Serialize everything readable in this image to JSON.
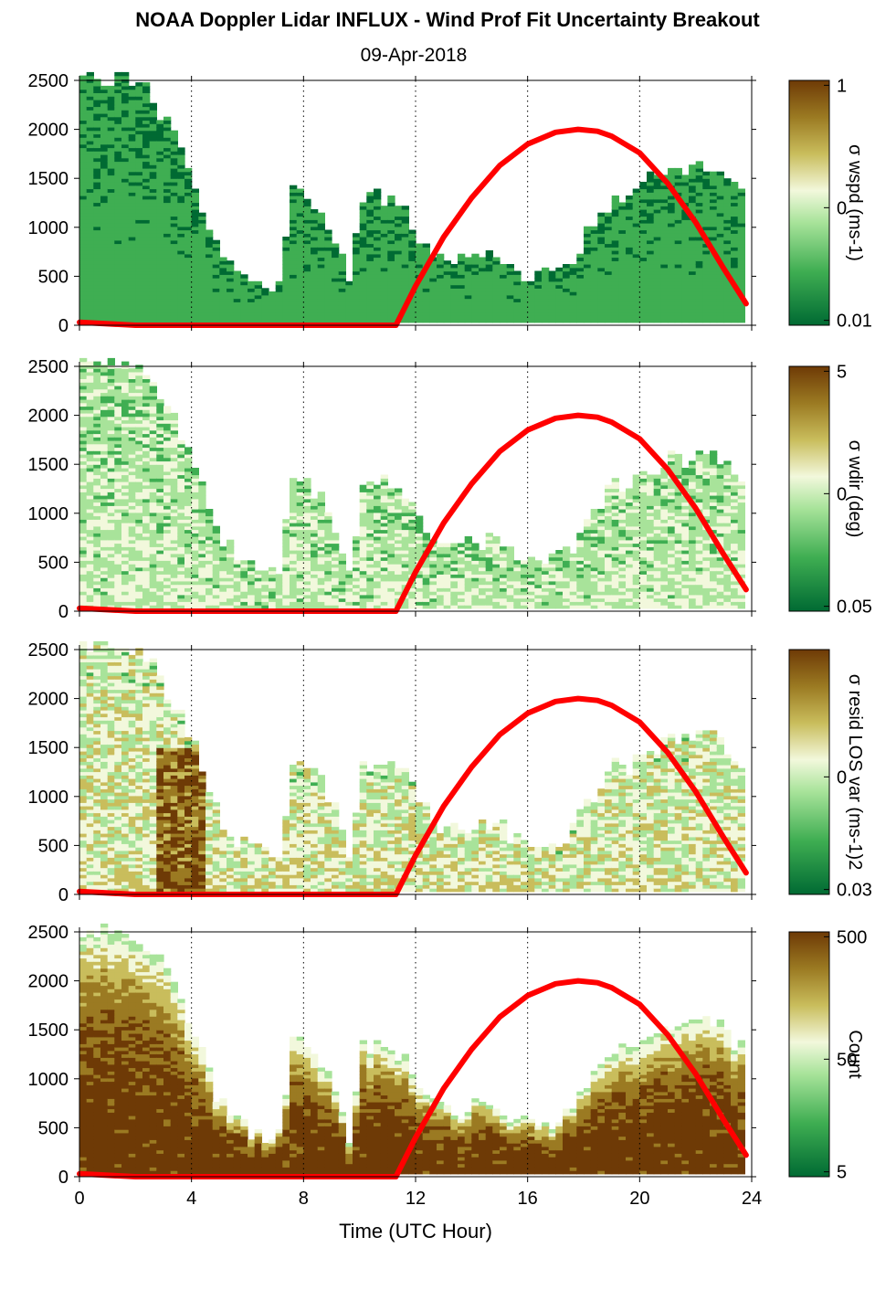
{
  "figure": {
    "title": "NOAA Doppler Lidar INFLUX - Wind Prof Fit Uncertainty Breakout",
    "subtitle": "09-Apr-2018",
    "xlabel": "Time (UTC Hour)"
  },
  "colors": {
    "dark_green": "#006a33",
    "mid_green": "#3fae52",
    "light_green": "#a8e39a",
    "pale": "#f2f8dc",
    "tan": "#c9bd5c",
    "olive": "#9b7a22",
    "dark_brown": "#6e3a06",
    "sun_line": "#ff0000"
  },
  "chart_data": [
    {
      "type": "heatmap",
      "panel": "wspd",
      "x_unit": "UTC hour",
      "y_unit": "m",
      "xlim": [
        0,
        24
      ],
      "ylim": [
        0,
        2500
      ],
      "xticks": [
        0,
        4,
        8,
        12,
        16,
        20,
        24
      ],
      "yticks": [
        0,
        500,
        1000,
        1500,
        2000,
        2500
      ],
      "vertical_gridlines": [
        4,
        8,
        12,
        16,
        20,
        24
      ],
      "colorbar": {
        "label": "σ wspd (ms-1)",
        "ticks": [
          "1",
          "0",
          "0.01"
        ],
        "scale": "log"
      },
      "bias": 0.15
    },
    {
      "type": "heatmap",
      "panel": "wdir",
      "x_unit": "UTC hour",
      "y_unit": "m",
      "xlim": [
        0,
        24
      ],
      "ylim": [
        0,
        2500
      ],
      "xticks": [
        0,
        4,
        8,
        12,
        16,
        20,
        24
      ],
      "yticks": [
        0,
        500,
        1000,
        1500,
        2000,
        2500
      ],
      "vertical_gridlines": [
        4,
        8,
        12,
        16,
        20,
        24
      ],
      "colorbar": {
        "label": "σ wdir (deg)",
        "ticks": [
          "5",
          "0",
          "0.05"
        ],
        "scale": "log"
      },
      "bias": 0.35
    },
    {
      "type": "heatmap",
      "panel": "resid",
      "x_unit": "UTC hour",
      "y_unit": "m",
      "xlim": [
        0,
        24
      ],
      "ylim": [
        0,
        2500
      ],
      "xticks": [
        0,
        4,
        8,
        12,
        16,
        20,
        24
      ],
      "yticks": [
        0,
        500,
        1000,
        1500,
        2000,
        2500
      ],
      "vertical_gridlines": [
        4,
        8,
        12,
        16,
        20,
        24
      ],
      "colorbar": {
        "label": "σ resid LOS var (ms-1)2",
        "ticks": [
          "0",
          "0.03"
        ],
        "scale": "log"
      },
      "bias": 0.45
    },
    {
      "type": "heatmap",
      "panel": "count",
      "x_unit": "UTC hour",
      "y_unit": "m",
      "xlim": [
        0,
        24
      ],
      "ylim": [
        0,
        2500
      ],
      "xticks": [
        0,
        4,
        8,
        12,
        16,
        20,
        24
      ],
      "yticks": [
        0,
        500,
        1000,
        1500,
        2000,
        2500
      ],
      "vertical_gridlines": [
        4,
        8,
        12,
        16,
        20,
        24
      ],
      "colorbar": {
        "label": "Count",
        "ticks": [
          "500",
          "50",
          "5"
        ],
        "scale": "log"
      },
      "bias": 0.9
    }
  ],
  "data_top_height": {
    "hours": [
      0,
      0.5,
      1,
      1.5,
      2,
      2.5,
      3,
      3.5,
      4,
      4.5,
      5,
      5.5,
      6,
      6.5,
      7,
      7.5,
      8,
      8.5,
      9,
      9.5,
      10,
      10.5,
      11,
      11.5,
      12,
      12.5,
      13,
      13.5,
      14,
      14.5,
      15,
      15.5,
      16,
      16.5,
      17,
      17.5,
      18,
      18.5,
      19,
      19.5,
      20,
      20.5,
      21,
      21.5,
      22,
      22.5,
      23,
      23.5
    ],
    "meters": [
      2500,
      2500,
      2500,
      2500,
      2450,
      2300,
      2050,
      1800,
      1450,
      1000,
      700,
      550,
      450,
      420,
      400,
      1350,
      1300,
      1150,
      850,
      400,
      1300,
      1300,
      1300,
      1200,
      900,
      750,
      650,
      650,
      700,
      700,
      650,
      550,
      500,
      500,
      550,
      650,
      900,
      1100,
      1300,
      1250,
      1450,
      1450,
      1550,
      1550,
      1600,
      1600,
      1450,
      1300
    ]
  },
  "sun_elevation_curve": {
    "hours": [
      0,
      2,
      4,
      6,
      8,
      10,
      11.3,
      12,
      13,
      14,
      15,
      16,
      17,
      17.8,
      18.5,
      19,
      20,
      21,
      22,
      23,
      23.8
    ],
    "meters": [
      30,
      0,
      0,
      0,
      0,
      0,
      0,
      400,
      900,
      1300,
      1630,
      1850,
      1970,
      2000,
      1980,
      1930,
      1760,
      1450,
      1050,
      580,
      220
    ]
  }
}
